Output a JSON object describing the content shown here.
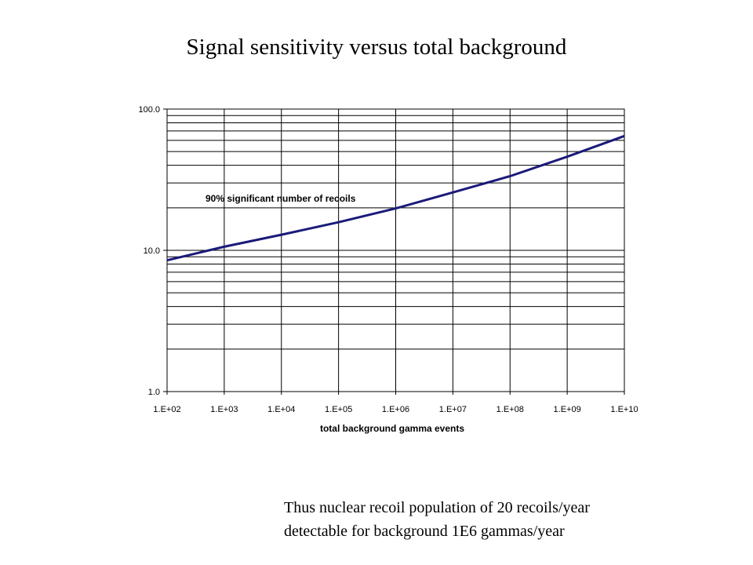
{
  "chart_data": {
    "type": "line",
    "title": "Signal sensitivity versus total background",
    "xlabel": "total background gamma events",
    "ylabel": "",
    "x_scale": "log",
    "y_scale": "log",
    "xlim": [
      100,
      10000000000
    ],
    "ylim": [
      1,
      100
    ],
    "x_tick_labels": [
      "1.E+02",
      "1.E+03",
      "1.E+04",
      "1.E+05",
      "1.E+06",
      "1.E+07",
      "1.E+08",
      "1.E+09",
      "1.E+10"
    ],
    "y_tick_labels": [
      "1.0",
      "10.0",
      "100.0"
    ],
    "grid": true,
    "annotation": "90% significant number of recoils",
    "series": [
      {
        "color": "#1a1a7a",
        "x": [
          100,
          1000,
          10000,
          100000,
          1000000,
          10000000,
          100000000,
          1000000000,
          10000000000
        ],
        "y": [
          8.5,
          10.6,
          12.9,
          15.8,
          19.8,
          25.7,
          33.5,
          46.0,
          64.5
        ]
      }
    ]
  },
  "caption": {
    "line1": "Thus nuclear recoil population of 20 recoils/year",
    "line2": "detectable for background 1E6 gammas/year"
  }
}
